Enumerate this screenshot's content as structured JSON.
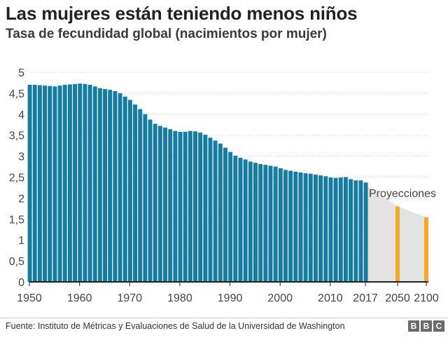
{
  "title": "Las mujeres están teniendo menos niños",
  "subtitle": "Tasa de fecundidad global (nacimientos por mujer)",
  "source": "Fuente: Instituto de Métricas y Evaluaciones de Salud de la Universidad de Washington",
  "logo_letters": [
    "B",
    "B",
    "C"
  ],
  "colors": {
    "historical": "#167da0",
    "projection": "#f7a826",
    "projection_area": "#e3e3e3",
    "grid": "#cfcfcf",
    "axis": "#222222"
  },
  "chart_data": {
    "type": "bar",
    "title": "Las mujeres están teniendo menos niños",
    "subtitle": "Tasa de fecundidad global (nacimientos por mujer)",
    "xlabel": "",
    "ylabel": "",
    "ylim": [
      0,
      5
    ],
    "y_ticks": [
      "0",
      "0,5",
      "1",
      "1,5",
      "2",
      "2,5",
      "3",
      "3,5",
      "4",
      "4,5",
      "5"
    ],
    "x_ticks": [
      "1950",
      "1960",
      "1970",
      "1980",
      "1990",
      "2000",
      "2010",
      "2017",
      "2050",
      "2100"
    ],
    "grid": true,
    "annotation": "Proyecciones",
    "series": [
      {
        "years": [
          1950,
          1951,
          1952,
          1953,
          1954,
          1955,
          1956,
          1957,
          1958,
          1959,
          1960,
          1961,
          1962,
          1963,
          1964,
          1965,
          1966,
          1967,
          1968,
          1969,
          1970,
          1971,
          1972,
          1973,
          1974,
          1975,
          1976,
          1977,
          1978,
          1979,
          1980,
          1981,
          1982,
          1983,
          1984,
          1985,
          1986,
          1987,
          1988,
          1989,
          1990,
          1991,
          1992,
          1993,
          1994,
          1995,
          1996,
          1997,
          1998,
          1999,
          2000,
          2001,
          2002,
          2003,
          2004,
          2005,
          2006,
          2007,
          2008,
          2009,
          2010,
          2011,
          2012,
          2013,
          2014,
          2015,
          2016,
          2017
        ],
        "values": [
          4.7,
          4.7,
          4.69,
          4.68,
          4.67,
          4.66,
          4.68,
          4.7,
          4.71,
          4.72,
          4.73,
          4.72,
          4.7,
          4.66,
          4.62,
          4.6,
          4.58,
          4.55,
          4.5,
          4.42,
          4.34,
          4.23,
          4.12,
          4.0,
          3.87,
          3.77,
          3.72,
          3.68,
          3.64,
          3.6,
          3.58,
          3.58,
          3.6,
          3.59,
          3.56,
          3.51,
          3.44,
          3.37,
          3.3,
          3.2,
          3.1,
          3.01,
          2.96,
          2.92,
          2.87,
          2.84,
          2.81,
          2.79,
          2.77,
          2.75,
          2.71,
          2.67,
          2.65,
          2.63,
          2.61,
          2.59,
          2.58,
          2.56,
          2.54,
          2.52,
          2.49,
          2.48,
          2.49,
          2.5,
          2.45,
          2.42,
          2.42,
          2.37
        ]
      },
      {
        "years": [
          2050,
          2100
        ],
        "values": [
          1.8,
          1.54
        ]
      }
    ]
  }
}
